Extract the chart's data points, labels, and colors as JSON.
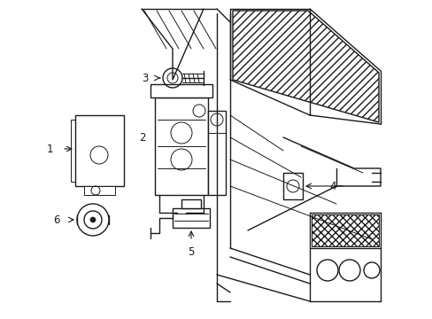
{
  "bg_color": "#ffffff",
  "line_color": "#1a1a1a",
  "lw": 1.0,
  "tlw": 0.7,
  "label_fontsize": 8.5
}
